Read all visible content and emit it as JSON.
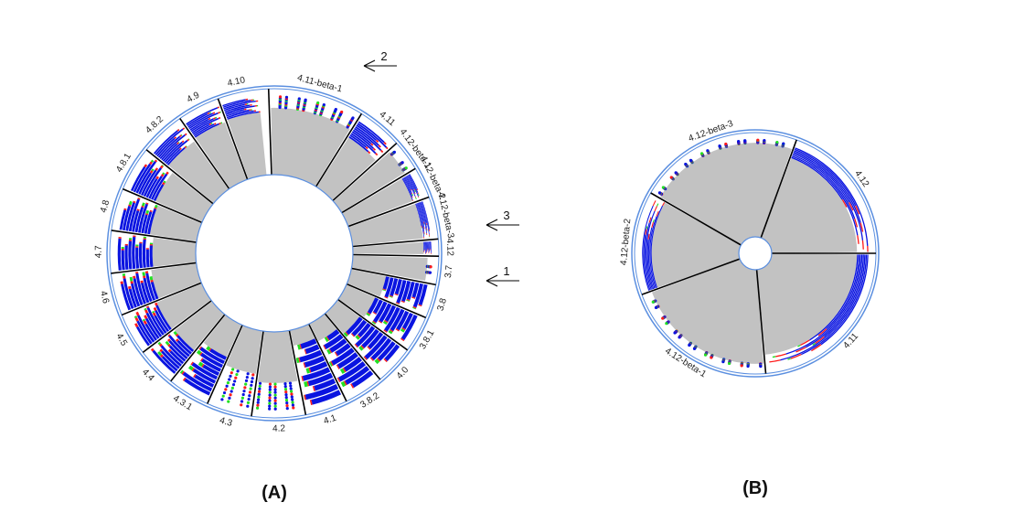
{
  "colors": {
    "bar_main": "#0a14e0",
    "bar_alt1": "#ff1a1a",
    "bar_alt2": "#22e022",
    "grey_fill": "#c2c2c2",
    "ring_stroke": "#5b8fe0",
    "spoke": "#000000"
  },
  "panels": [
    {
      "panel_label": "(A)",
      "segments": [
        {
          "label": "4.11-beta-1",
          "fill": 0.15,
          "red": 0.05,
          "green": 0.0,
          "sparse": true
        },
        {
          "label": "4.11",
          "fill": 0.25,
          "red": 0.05,
          "green": 0.0,
          "sparse": false
        },
        {
          "label": "4.12-beta-1",
          "fill": 0.05,
          "red": 0.02,
          "green": 0.05,
          "sparse": true
        },
        {
          "label": "4.12-beta-2",
          "fill": 0.12,
          "red": 0.02,
          "green": 0.08,
          "sparse": false
        },
        {
          "label": "4.12-beta-3",
          "fill": 0.1,
          "red": 0.03,
          "green": 0.02,
          "sparse": false
        },
        {
          "label": "4.12",
          "fill": 0.1,
          "red": 0.06,
          "green": 0.0,
          "sparse": false
        },
        {
          "label": "3.7",
          "fill": 0.05,
          "red": 0.0,
          "green": 0.04,
          "sparse": true
        },
        {
          "label": "3.8",
          "fill": 0.55,
          "red": 0.02,
          "green": 0.03,
          "sparse": false
        },
        {
          "label": "3.8.1",
          "fill": 0.6,
          "red": 0.02,
          "green": 0.08,
          "sparse": false
        },
        {
          "label": "4.0",
          "fill": 0.65,
          "red": 0.02,
          "green": 0.1,
          "sparse": false
        },
        {
          "label": "3.8.2",
          "fill": 0.75,
          "red": 0.02,
          "green": 0.1,
          "sparse": false
        },
        {
          "label": "4.1",
          "fill": 0.8,
          "red": 0.02,
          "green": 0.1,
          "sparse": false
        },
        {
          "label": "4.2",
          "fill": 0.35,
          "red": 0.05,
          "green": 0.1,
          "sparse": true
        },
        {
          "label": "4.3",
          "fill": 0.45,
          "red": 0.08,
          "green": 0.15,
          "sparse": true
        },
        {
          "label": "4.3.1",
          "fill": 0.55,
          "red": 0.02,
          "green": 0.12,
          "sparse": false
        },
        {
          "label": "4.4",
          "fill": 0.4,
          "red": 0.05,
          "green": 0.12,
          "sparse": false
        },
        {
          "label": "4.5",
          "fill": 0.38,
          "red": 0.08,
          "green": 0.05,
          "sparse": false
        },
        {
          "label": "4.6",
          "fill": 0.42,
          "red": 0.05,
          "green": 0.12,
          "sparse": false
        },
        {
          "label": "4.7",
          "fill": 0.45,
          "red": 0.02,
          "green": 0.05,
          "sparse": false
        },
        {
          "label": "4.8",
          "fill": 0.4,
          "red": 0.02,
          "green": 0.1,
          "sparse": false
        },
        {
          "label": "4.8.1",
          "fill": 0.35,
          "red": 0.05,
          "green": 0.05,
          "sparse": false
        },
        {
          "label": "4.8.2",
          "fill": 0.25,
          "red": 0.03,
          "green": 0.02,
          "sparse": false
        },
        {
          "label": "4.9",
          "fill": 0.22,
          "red": 0.04,
          "green": 0.04,
          "sparse": false
        },
        {
          "label": "4.10",
          "fill": 0.2,
          "red": 0.04,
          "green": 0.03,
          "sparse": false
        }
      ],
      "arrows": [
        {
          "label": "2",
          "segment": "4.11"
        },
        {
          "label": "3",
          "segment": "4.12"
        },
        {
          "label": "1",
          "segment": "3.7"
        }
      ]
    },
    {
      "panel_label": "(B)",
      "segments": [
        {
          "label": "4.12",
          "fill": 0.12,
          "red": 0.05,
          "green": 0.0,
          "sparse": false
        },
        {
          "label": "4.11",
          "fill": 0.12,
          "red": 0.05,
          "green": 0.02,
          "sparse": false
        },
        {
          "label": "4.12-beta-1",
          "fill": 0.03,
          "red": 0.02,
          "green": 0.02,
          "sparse": true
        },
        {
          "label": "4.12-beta-2",
          "fill": 0.1,
          "red": 0.04,
          "green": 0.03,
          "sparse": false
        },
        {
          "label": "4.12-beta-3",
          "fill": 0.03,
          "red": 0.02,
          "green": 0.02,
          "sparse": true
        }
      ],
      "arrows": []
    }
  ]
}
